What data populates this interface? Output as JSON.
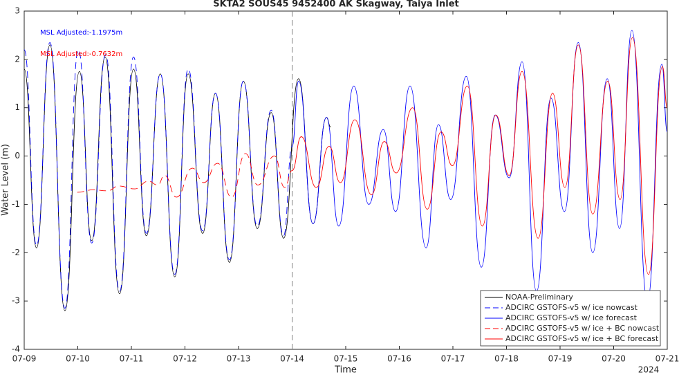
{
  "chart_data": {
    "type": "line",
    "title": "SKTA2 SOUS45 9452400 AK Skagway, Taiya Inlet",
    "xlabel": "Time",
    "ylabel": "Water Level (m)",
    "x_sublabel": "2024",
    "annotations": [
      {
        "text": "MSL Adjusted:-1.1975m",
        "color": "#0000ff"
      },
      {
        "text": "MSL Adjusted:-0.7632m",
        "color": "#ff0000"
      }
    ],
    "xlim": [
      0,
      12
    ],
    "xticks": [
      {
        "value": 0,
        "label": "07-09"
      },
      {
        "value": 1,
        "label": "07-10"
      },
      {
        "value": 2,
        "label": "07-11"
      },
      {
        "value": 3,
        "label": "07-12"
      },
      {
        "value": 4,
        "label": "07-13"
      },
      {
        "value": 5,
        "label": "07-14"
      },
      {
        "value": 6,
        "label": "07-15"
      },
      {
        "value": 7,
        "label": "07-16"
      },
      {
        "value": 8,
        "label": "07-17"
      },
      {
        "value": 9,
        "label": "07-18"
      },
      {
        "value": 10,
        "label": "07-19"
      },
      {
        "value": 11,
        "label": "07-20"
      },
      {
        "value": 12,
        "label": "07-21"
      }
    ],
    "ylim": [
      -4,
      3
    ],
    "yticks": [
      -4,
      -3,
      -2,
      -1,
      0,
      1,
      2,
      3
    ],
    "vline_x": 5,
    "legend": "lower right",
    "series": [
      {
        "name": "NOAA-Preliminary",
        "color": "#000000",
        "dash": false,
        "x": [
          0,
          0.23,
          0.48,
          0.76,
          1.03,
          1.26,
          1.51,
          1.78,
          2.04,
          2.28,
          2.54,
          2.81,
          3.06,
          3.33,
          3.57,
          3.83,
          4.09,
          4.35,
          4.61,
          4.84,
          5.12,
          5.39,
          5.64,
          5.72
        ],
        "values": [
          1.8,
          -1.9,
          2.3,
          -3.2,
          1.75,
          -1.75,
          2.05,
          -2.85,
          1.8,
          -1.65,
          1.7,
          -2.5,
          1.7,
          -1.6,
          1.3,
          -2.2,
          1.55,
          -1.5,
          0.9,
          -1.7,
          1.6,
          -1.4,
          0.8,
          0.6
        ]
      },
      {
        "name": "ADCIRC GSTOFS-v5 w/ ice nowcast",
        "color": "#0000ff",
        "dash": true,
        "x": [
          0,
          0.23,
          0.48,
          0.76,
          1.01,
          1.26,
          1.52,
          1.78,
          2.04,
          2.28,
          2.54,
          2.81,
          3.06,
          3.33,
          3.57,
          3.83,
          4.09,
          4.35,
          4.61,
          4.84,
          5.0
        ],
        "values": [
          2.2,
          -1.85,
          2.35,
          -3.15,
          2.2,
          -1.8,
          2.1,
          -2.8,
          2.05,
          -1.6,
          1.7,
          -2.45,
          1.8,
          -1.55,
          1.3,
          -2.15,
          1.55,
          -1.45,
          0.95,
          -1.65,
          0.2
        ]
      },
      {
        "name": "ADCIRC GSTOFS-v5 w/ ice forecast",
        "color": "#0000ff",
        "dash": false,
        "x": [
          5.0,
          5.12,
          5.39,
          5.64,
          5.87,
          6.15,
          6.43,
          6.7,
          6.93,
          7.2,
          7.5,
          7.73,
          7.96,
          8.25,
          8.53,
          8.79,
          9.05,
          9.29,
          9.56,
          9.83,
          10.08,
          10.34,
          10.61,
          10.88,
          11.11,
          11.34,
          11.63,
          11.9,
          12
        ],
        "values": [
          0.2,
          1.55,
          -1.4,
          0.8,
          -1.45,
          1.45,
          -1.0,
          0.55,
          -1.15,
          1.45,
          -1.9,
          0.65,
          -0.9,
          1.65,
          -2.3,
          0.85,
          -0.45,
          1.95,
          -2.8,
          1.2,
          -1.15,
          2.35,
          -2.0,
          1.6,
          -1.5,
          2.6,
          -3.0,
          1.9,
          0.5
        ]
      },
      {
        "name": "ADCIRC GSTOFS-v5 w/ ice + BC nowcast",
        "color": "#ff0000",
        "dash": true,
        "x": [
          0.99,
          1.29,
          1.55,
          1.77,
          2.06,
          2.32,
          2.49,
          2.62,
          2.84,
          3.14,
          3.35,
          3.61,
          3.87,
          4.13,
          4.36,
          4.67,
          4.86,
          5.0
        ],
        "values": [
          -0.75,
          -0.7,
          -0.72,
          -0.62,
          -0.68,
          -0.52,
          -0.6,
          -0.4,
          -0.85,
          -0.25,
          -0.55,
          -0.15,
          -0.85,
          0.05,
          -0.6,
          0.0,
          -0.65,
          -0.3
        ]
      },
      {
        "name": "ADCIRC GSTOFS-v5 w/ ice + BC forecast",
        "color": "#ff0000",
        "dash": false,
        "x": [
          5.0,
          5.17,
          5.45,
          5.69,
          5.9,
          6.17,
          6.48,
          6.72,
          6.94,
          7.25,
          7.52,
          7.78,
          7.99,
          8.27,
          8.55,
          8.8,
          9.05,
          9.29,
          9.59,
          9.86,
          10.09,
          10.34,
          10.61,
          10.89,
          11.12,
          11.35,
          11.65,
          11.91,
          12
        ],
        "values": [
          -0.3,
          0.4,
          -0.65,
          0.2,
          -0.55,
          0.75,
          -0.8,
          0.3,
          -0.35,
          1.0,
          -1.1,
          0.5,
          -0.2,
          1.45,
          -1.45,
          0.85,
          -0.4,
          1.75,
          -1.7,
          1.3,
          -0.65,
          2.3,
          -1.2,
          1.55,
          -0.9,
          2.45,
          -2.45,
          1.85,
          1.0
        ]
      }
    ]
  }
}
